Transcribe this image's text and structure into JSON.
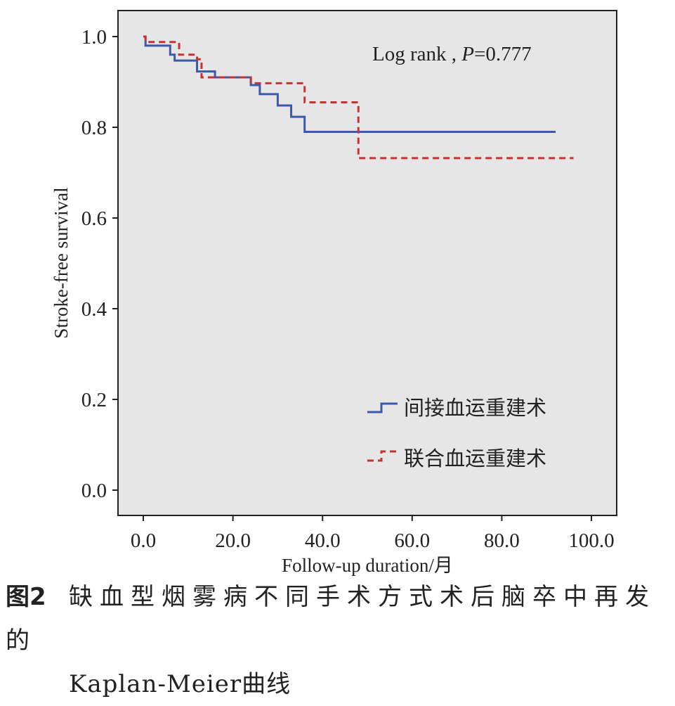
{
  "chart_data": {
    "type": "line",
    "step": true,
    "xlim": [
      0,
      100
    ],
    "ylim": [
      0.0,
      1.0
    ],
    "x_ticks": [
      "0.0",
      "20.0",
      "40.0",
      "60.0",
      "80.0",
      "100.0"
    ],
    "y_ticks": [
      "0.0",
      "0.2",
      "0.4",
      "0.6",
      "0.8",
      "1.0"
    ],
    "xlabel": "Follow-up duration/月",
    "ylabel": "Stroke-free survival",
    "annotation": "Log rank , P=0.777",
    "annotation_parts": {
      "prefix": "Log rank , ",
      "stat": "P",
      "value": "=0.777"
    },
    "background": "#e6e6e6",
    "legend_position": "lower-right",
    "series": [
      {
        "name": "间接血运重建术",
        "color": "#3d5aa8",
        "style": "solid",
        "points": [
          [
            0,
            1.0
          ],
          [
            0.5,
            0.98
          ],
          [
            6,
            0.96
          ],
          [
            7,
            0.947
          ],
          [
            12,
            0.923
          ],
          [
            16,
            0.91
          ],
          [
            24,
            0.893
          ],
          [
            26,
            0.873
          ],
          [
            30,
            0.848
          ],
          [
            33,
            0.823
          ],
          [
            36,
            0.79
          ],
          [
            92,
            0.79
          ]
        ]
      },
      {
        "name": "联合血运重建术",
        "color": "#c83232",
        "style": "dashed",
        "points": [
          [
            0,
            1.0
          ],
          [
            0.5,
            0.988
          ],
          [
            8,
            0.96
          ],
          [
            12,
            0.95
          ],
          [
            13,
            0.91
          ],
          [
            24,
            0.897
          ],
          [
            36,
            0.855
          ],
          [
            48,
            0.732
          ],
          [
            96,
            0.732
          ]
        ]
      }
    ]
  },
  "caption": {
    "figure_label": "图2",
    "title_line1": "缺血型烟雾病不同手术方式术后脑卒中再发的",
    "title_line2": "Kaplan-Meier曲线"
  }
}
